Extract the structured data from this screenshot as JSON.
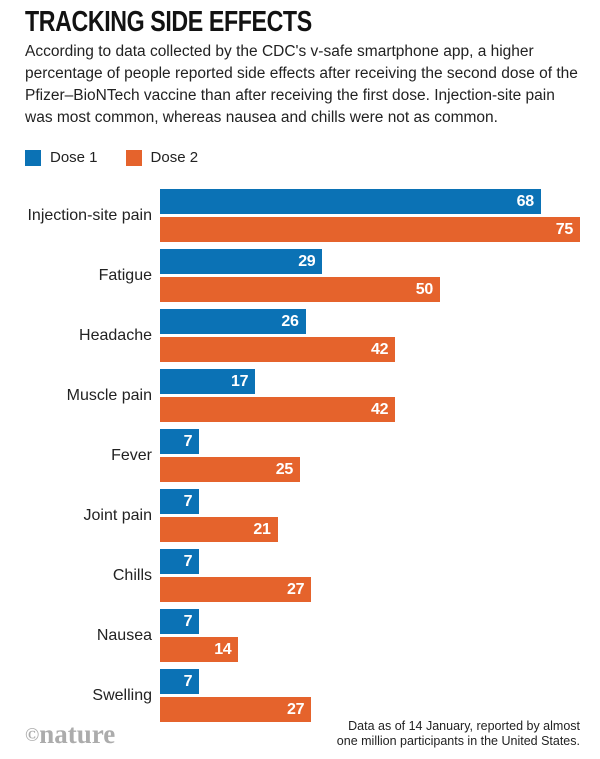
{
  "header": {
    "title": "TRACKING SIDE EFFECTS",
    "description": "According to data collected by the CDC's v-safe smartphone app, a higher percentage of people reported side effects after receiving the second dose of the Pfizer–BioNTech vaccine than after receiving the first dose. Injection-site pain was most common, whereas nausea and chills were not as common."
  },
  "colors": {
    "dose1_blue": "#0B72B5",
    "dose2_orange": "#E5632C",
    "text_dark": "#222222",
    "logo_gray": "#ACACAC"
  },
  "legend": {
    "items": [
      {
        "label": "Dose 1",
        "color": "#0B72B5"
      },
      {
        "label": "Dose 2",
        "color": "#E5632C"
      }
    ]
  },
  "chart_data": {
    "type": "bar",
    "orientation": "horizontal",
    "categories": [
      "Injection-site pain",
      "Fatigue",
      "Headache",
      "Muscle pain",
      "Fever",
      "Joint pain",
      "Chills",
      "Nausea",
      "Swelling"
    ],
    "series": [
      {
        "name": "Dose 1",
        "color": "#0B72B5",
        "values": [
          68,
          29,
          26,
          17,
          7,
          7,
          7,
          7,
          7
        ]
      },
      {
        "name": "Dose 2",
        "color": "#E5632C",
        "values": [
          75,
          50,
          42,
          42,
          25,
          21,
          27,
          14,
          27
        ]
      }
    ],
    "value_unit": "percent of participants",
    "xlim": [
      0,
      78
    ],
    "value_labels": "inside-end",
    "grid": false,
    "legend_position": "top-left"
  },
  "footer": {
    "note_line1": "Data as of 14 January, reported by almost",
    "note_line2": "one million participants in the United States.",
    "logo_symbol": "©",
    "logo_text": "nature"
  }
}
